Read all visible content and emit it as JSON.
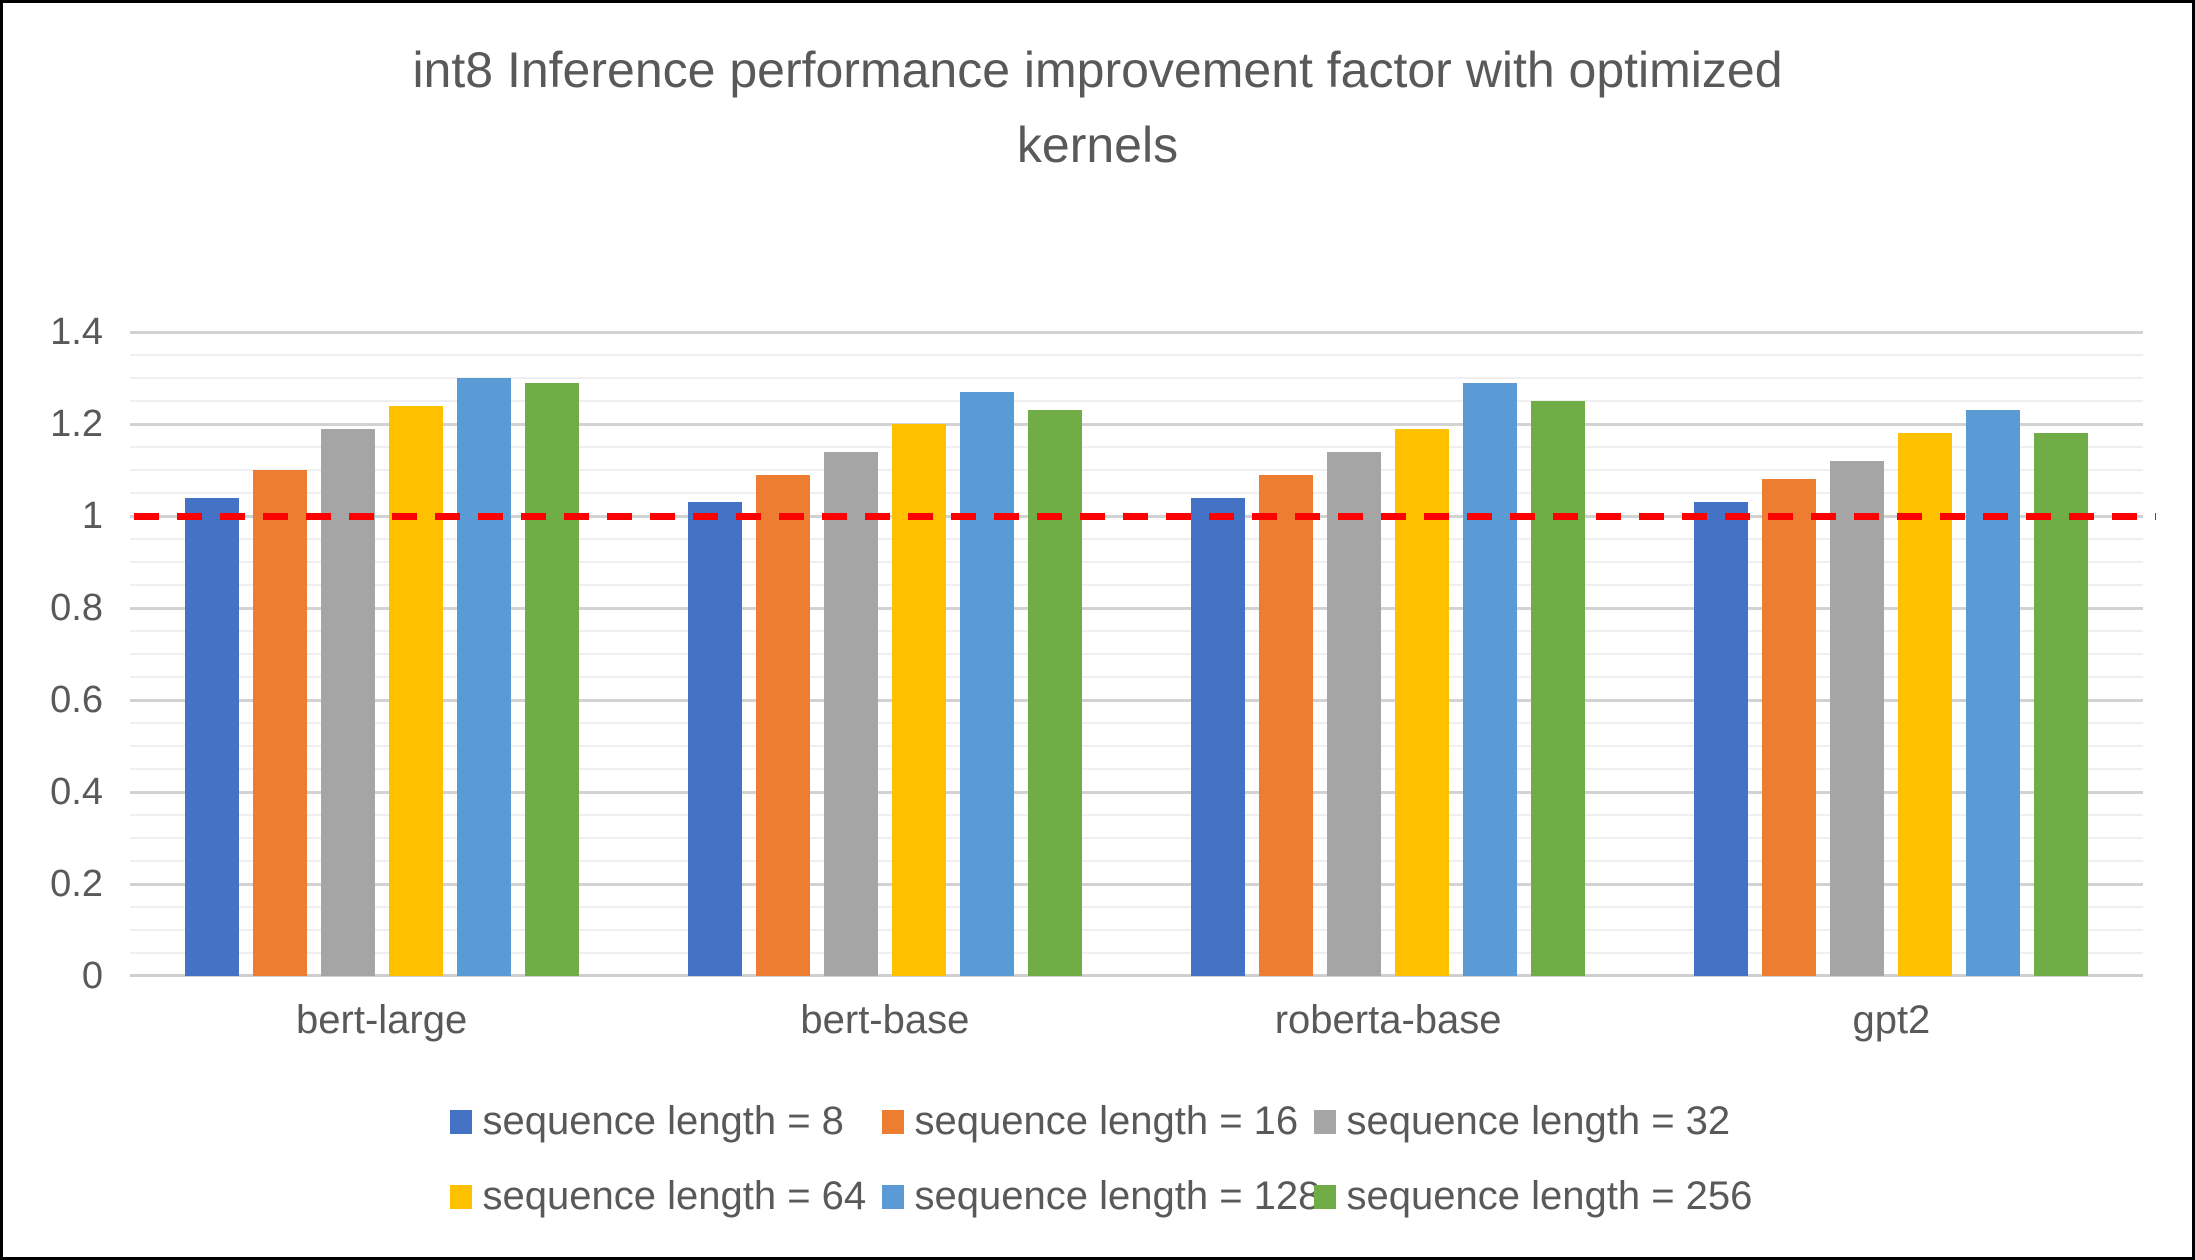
{
  "header": {
    "title_line1": "int8 Inference performance improvement factor with optimized",
    "title_line2": "kernels"
  },
  "chart_data": {
    "type": "bar",
    "title": "int8 Inference performance improvement factor with optimized kernels",
    "categories": [
      "bert-large",
      "bert-base",
      "roberta-base",
      "gpt2"
    ],
    "series": [
      {
        "name": "sequence length = 8",
        "color": "#4472C4",
        "values": [
          1.04,
          1.03,
          1.04,
          1.03
        ]
      },
      {
        "name": "sequence length = 16",
        "color": "#ED7D31",
        "values": [
          1.1,
          1.09,
          1.09,
          1.08
        ]
      },
      {
        "name": "sequence length = 32",
        "color": "#A5A5A5",
        "values": [
          1.19,
          1.14,
          1.14,
          1.12
        ]
      },
      {
        "name": "sequence length = 64",
        "color": "#FFC000",
        "values": [
          1.24,
          1.2,
          1.19,
          1.18
        ]
      },
      {
        "name": "sequence length = 128",
        "color": "#5B9BD5",
        "values": [
          1.3,
          1.27,
          1.29,
          1.23
        ]
      },
      {
        "name": "sequence length = 256",
        "color": "#70AD47",
        "values": [
          1.29,
          1.23,
          1.25,
          1.18
        ]
      }
    ],
    "reference_line": {
      "value": 1.0,
      "color": "#FF0000",
      "style": "dashed"
    },
    "xlabel": "",
    "ylabel": "",
    "ylim": [
      0,
      1.4
    ],
    "major_step": 0.2,
    "minor_step": 0.05,
    "y_ticks": [
      "0",
      "0.2",
      "0.4",
      "0.6",
      "0.8",
      "1",
      "1.2",
      "1.4"
    ],
    "grid": true,
    "legend_position": "bottom",
    "legend_rows": [
      [
        0,
        1,
        2
      ],
      [
        3,
        4,
        5
      ]
    ]
  },
  "colors": {
    "text": "#595959",
    "grid_major": "#D2D2D2",
    "grid_minor": "#EFEFEF",
    "background": "#FFFFFF",
    "border": "#000000"
  }
}
